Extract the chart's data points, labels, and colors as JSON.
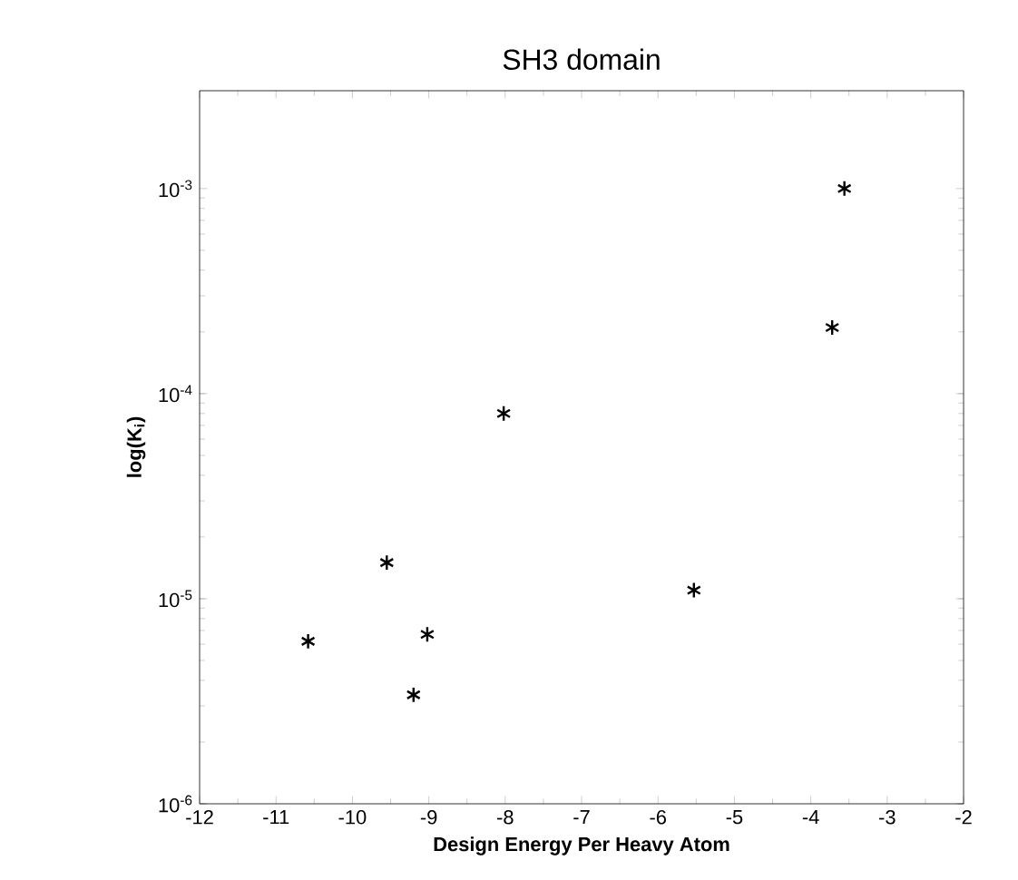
{
  "chart_data": {
    "type": "scatter",
    "title": "SH3 domain",
    "xlabel": "Design Energy Per Heavy Atom",
    "ylabel": "log(K$_{i}$)",
    "x": [
      -10.58,
      -9.55,
      -9.02,
      -9.2,
      -8.02,
      -5.53,
      -3.72,
      -3.56
    ],
    "series": [
      {
        "color": "#000000",
        "values": [
          6.2e-06,
          1.5e-05,
          6.7e-06,
          3.4e-06,
          8e-05,
          1.1e-05,
          0.00021,
          0.001
        ]
      }
    ],
    "marker": "cross",
    "log": "y",
    "grid": false,
    "xlim": [
      -12,
      -2
    ],
    "xticks": [
      -12,
      -11,
      -10,
      -9,
      -8,
      -7,
      -6,
      -5,
      -4,
      -3,
      -2
    ],
    "ylim": [
      1e-06,
      0.003
    ],
    "yticks": [
      {
        "value": 1e-06,
        "label": "10$^{-6}$"
      },
      {
        "value": 1e-05,
        "label": "10$^{-5}$"
      },
      {
        "value": 0.0001,
        "label": "10$^{-4}$"
      },
      {
        "value": 0.001,
        "label": "10$^{-3}$"
      }
    ]
  }
}
